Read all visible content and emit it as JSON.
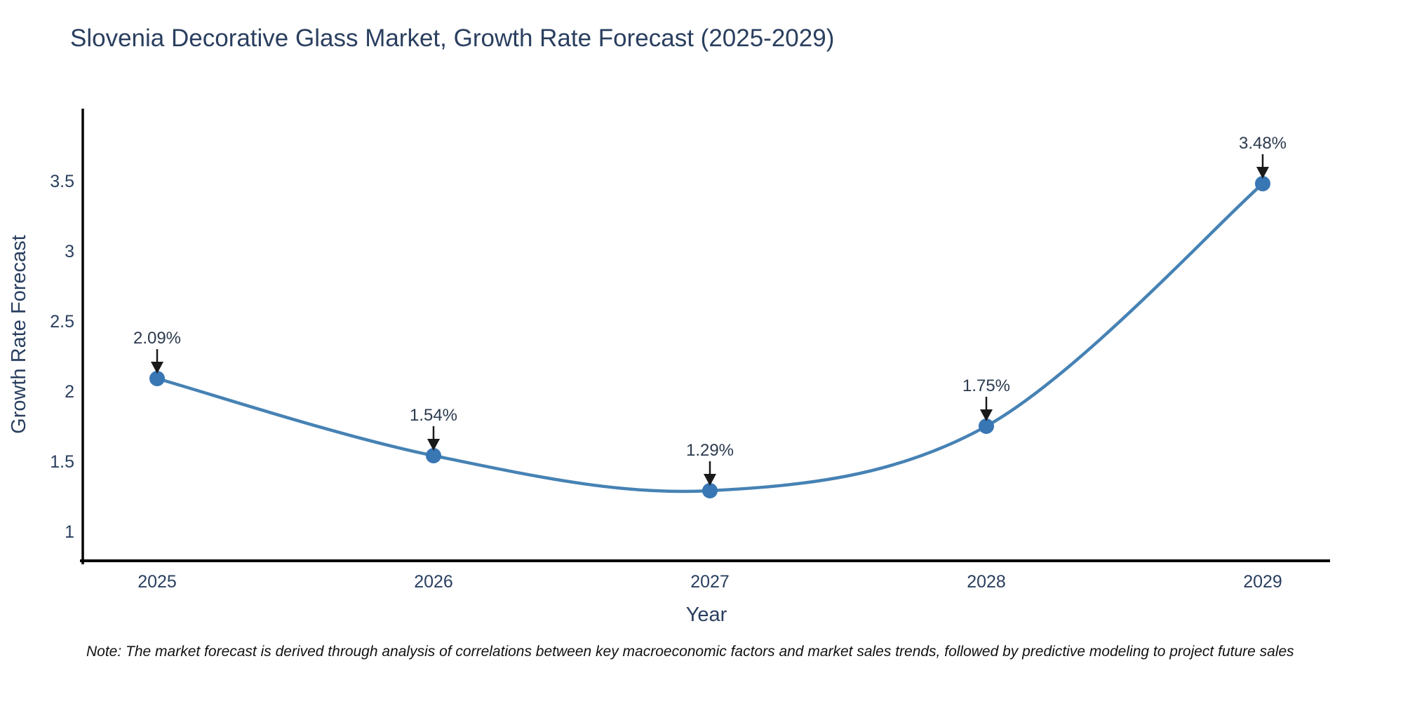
{
  "chart_data": {
    "type": "line",
    "title": "Slovenia Decorative Glass Market, Growth Rate Forecast (2025-2029)",
    "xlabel": "Year",
    "ylabel": "Growth Rate Forecast",
    "x": [
      "2025",
      "2026",
      "2027",
      "2028",
      "2029"
    ],
    "values": [
      2.09,
      1.54,
      1.29,
      1.75,
      3.48
    ],
    "point_labels": [
      "2.09%",
      "1.54%",
      "1.29%",
      "1.75%",
      "3.48%"
    ],
    "yticks": [
      1,
      1.5,
      2,
      2.5,
      3,
      3.5
    ],
    "ytick_labels": [
      "1",
      "1.5",
      "2",
      "2.5",
      "3",
      "3.5"
    ],
    "ylim": [
      0.79,
      4.02
    ],
    "line_shape": "spline",
    "grid": false,
    "legend": "none",
    "colors": {
      "line": "#4682b4",
      "marker": "#3876b4",
      "axis": "#000000",
      "text": "#2a3f5f",
      "annotation": "#2c3a4e",
      "arrow": "#1a1a1a",
      "note": "#111111",
      "background": "#ffffff"
    }
  },
  "note": {
    "text": "Note: The market forecast is derived through analysis of correlations between key macroeconomic factors and market sales trends, followed by predictive modeling to project future sales"
  }
}
